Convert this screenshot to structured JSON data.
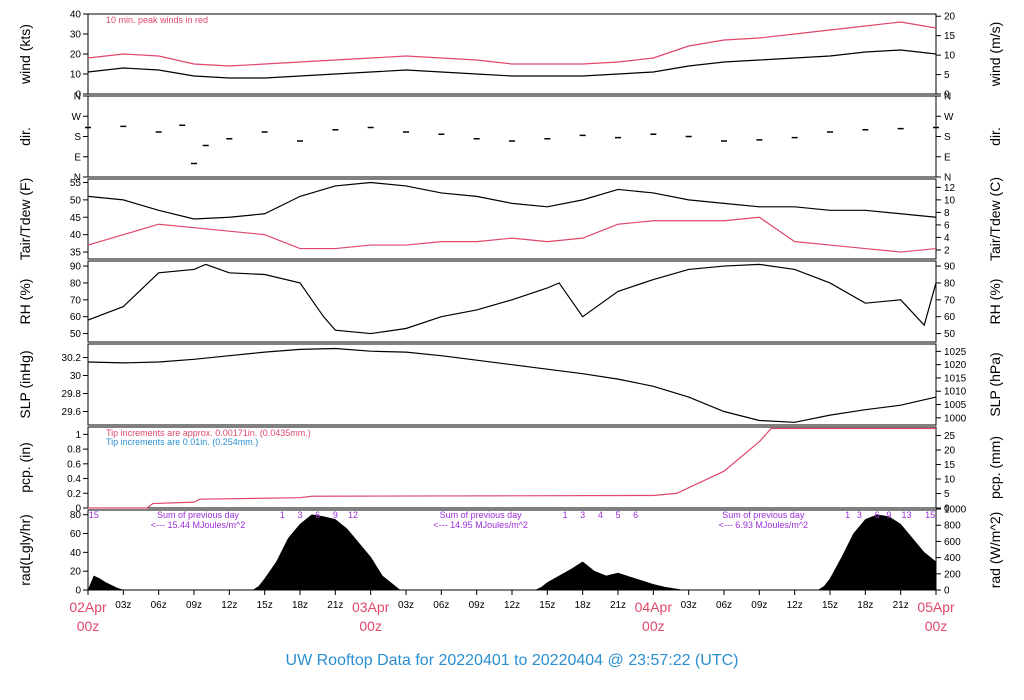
{
  "title": "UW Rooftop Data for 20220401  to  20220404 @ 23:57:22  (UTC)",
  "colors": {
    "black": "#000000",
    "red": "#e0476b",
    "blue": "#2a8fd1",
    "purple": "#9b30d9"
  },
  "x_axis": {
    "hour_labels": [
      "03z",
      "06z",
      "09z",
      "12z",
      "15z",
      "18z",
      "21z",
      "03z",
      "06z",
      "09z",
      "12z",
      "15z",
      "18z",
      "21z",
      "03z",
      "06z",
      "09z",
      "12z",
      "15z",
      "18z",
      "21z"
    ],
    "hour_positions": [
      3,
      6,
      9,
      12,
      15,
      18,
      21,
      27,
      30,
      33,
      36,
      39,
      42,
      45,
      51,
      54,
      57,
      60,
      63,
      66,
      69
    ],
    "dates": [
      {
        "label": "02Apr",
        "sub": "00z",
        "hour": 0
      },
      {
        "label": "03Apr",
        "sub": "00z",
        "hour": 24
      },
      {
        "label": "04Apr",
        "sub": "00z",
        "hour": 48
      },
      {
        "label": "05Apr",
        "sub": "00z",
        "hour": 72
      }
    ]
  },
  "chart_data": [
    {
      "type": "line",
      "panel": "wind",
      "ylabel_left": "wind (kts)",
      "ylabel_right": "wind (m/s)",
      "ylim": [
        0,
        40
      ],
      "yticks_left": [
        0,
        10,
        20,
        30,
        40
      ],
      "yticks_right": [
        0,
        5,
        10,
        15,
        20
      ],
      "right_scale": 0.5144,
      "annotation": "10 min. peak winds in red",
      "series": [
        {
          "color": "black",
          "x": [
            0,
            3,
            6,
            9,
            12,
            15,
            18,
            21,
            24,
            27,
            30,
            33,
            36,
            39,
            42,
            45,
            48,
            51,
            54,
            57,
            60,
            63,
            66,
            69,
            72
          ],
          "y": [
            11,
            13,
            12,
            9,
            8,
            8,
            9,
            10,
            11,
            12,
            11,
            10,
            9,
            9,
            9,
            10,
            11,
            14,
            16,
            17,
            18,
            19,
            21,
            22,
            20
          ]
        },
        {
          "color": "red",
          "x": [
            0,
            3,
            6,
            9,
            12,
            15,
            18,
            21,
            24,
            27,
            30,
            33,
            36,
            39,
            42,
            45,
            48,
            51,
            54,
            57,
            60,
            63,
            66,
            69,
            72
          ],
          "y": [
            18,
            20,
            19,
            15,
            14,
            15,
            16,
            17,
            18,
            19,
            18,
            17,
            15,
            15,
            15,
            16,
            18,
            24,
            27,
            28,
            30,
            32,
            34,
            36,
            33
          ]
        }
      ]
    },
    {
      "type": "scatter",
      "panel": "dir",
      "ylabel_left": "dir.",
      "ylabel_right": "dir.",
      "ylim": [
        0,
        360
      ],
      "yticks": [
        0,
        90,
        180,
        270,
        360
      ],
      "yticklabels": [
        "N",
        "E",
        "S",
        "W",
        "N"
      ],
      "series": [
        {
          "color": "black",
          "x": [
            0,
            3,
            6,
            8,
            9,
            10,
            12,
            15,
            18,
            21,
            24,
            27,
            30,
            33,
            36,
            39,
            42,
            45,
            48,
            51,
            54,
            57,
            60,
            63,
            66,
            69,
            72
          ],
          "y": [
            220,
            225,
            200,
            230,
            60,
            140,
            170,
            200,
            160,
            210,
            220,
            200,
            190,
            170,
            160,
            170,
            185,
            175,
            190,
            180,
            160,
            165,
            175,
            200,
            210,
            215,
            220
          ]
        }
      ]
    },
    {
      "type": "line",
      "panel": "temp",
      "ylabel_left": "Tair/Tdew (F)",
      "ylabel_right": "Tair/Tdew (C)",
      "ylim": [
        33,
        56
      ],
      "yticks_left": [
        35,
        40,
        45,
        50,
        55
      ],
      "yticks_right": [
        2,
        4,
        6,
        8,
        10,
        12
      ],
      "series": [
        {
          "color": "black",
          "x": [
            0,
            3,
            6,
            9,
            12,
            15,
            18,
            21,
            24,
            27,
            30,
            33,
            36,
            39,
            42,
            45,
            48,
            51,
            54,
            57,
            60,
            63,
            66,
            69,
            72
          ],
          "y": [
            51,
            50,
            47,
            44.5,
            45,
            46,
            51,
            54,
            55,
            54,
            52,
            51,
            49,
            48,
            50,
            53,
            52,
            50,
            49,
            48,
            48,
            47,
            47,
            46,
            45
          ]
        },
        {
          "color": "red",
          "x": [
            0,
            3,
            6,
            9,
            12,
            15,
            18,
            21,
            24,
            27,
            30,
            33,
            36,
            39,
            42,
            45,
            48,
            51,
            54,
            57,
            60,
            63,
            66,
            69,
            72
          ],
          "y": [
            37,
            40,
            43,
            42,
            41,
            40,
            36,
            36,
            37,
            37,
            38,
            38,
            39,
            38,
            39,
            43,
            44,
            44,
            44,
            45,
            38,
            37,
            36,
            35,
            36
          ]
        }
      ]
    },
    {
      "type": "line",
      "panel": "rh",
      "ylabel_left": "RH (%)",
      "ylabel_right": "RH (%)",
      "ylim": [
        45,
        93
      ],
      "yticks": [
        50,
        60,
        70,
        80,
        90
      ],
      "series": [
        {
          "color": "black",
          "x": [
            0,
            3,
            6,
            9,
            10,
            12,
            15,
            18,
            20,
            21,
            24,
            27,
            30,
            33,
            36,
            39,
            40,
            42,
            45,
            48,
            51,
            54,
            57,
            60,
            63,
            66,
            69,
            71,
            72
          ],
          "y": [
            58,
            66,
            86,
            88,
            91,
            86,
            85,
            80,
            60,
            52,
            50,
            53,
            60,
            64,
            70,
            77,
            80,
            60,
            75,
            82,
            88,
            90,
            91,
            88,
            80,
            68,
            70,
            55,
            80
          ]
        }
      ]
    },
    {
      "type": "line",
      "panel": "slp",
      "ylabel_left": "SLP (inHg)",
      "ylabel_right": "SLP (hPa)",
      "ylim": [
        29.45,
        30.35
      ],
      "yticks_left": [
        29.6,
        29.8,
        30.0,
        30.2
      ],
      "yticks_right": [
        1000,
        1005,
        1010,
        1015,
        1020,
        1025
      ],
      "series": [
        {
          "color": "black",
          "x": [
            0,
            3,
            6,
            9,
            12,
            15,
            18,
            21,
            24,
            27,
            30,
            33,
            36,
            39,
            42,
            45,
            48,
            51,
            54,
            57,
            60,
            63,
            66,
            69,
            72
          ],
          "y": [
            30.15,
            30.14,
            30.15,
            30.18,
            30.22,
            30.26,
            30.29,
            30.3,
            30.27,
            30.26,
            30.22,
            30.17,
            30.12,
            30.07,
            30.02,
            29.96,
            29.88,
            29.76,
            29.6,
            29.5,
            29.48,
            29.56,
            29.62,
            29.67,
            29.76
          ]
        }
      ]
    },
    {
      "type": "line",
      "panel": "pcp",
      "ylabel_left": "pcp. (in)",
      "ylabel_right": "pcp. (mm)",
      "ylim": [
        0,
        1.1
      ],
      "yticks_left": [
        0.0,
        0.2,
        0.4,
        0.6,
        0.8,
        1.0
      ],
      "yticks_right": [
        0,
        5,
        10,
        15,
        20,
        25
      ],
      "note_red": "Tip increments are approx. 0.00171in. (0.0435mm.)",
      "note_blue": "Tip increments are 0.01in. (0.254mm.)",
      "series": [
        {
          "color": "red",
          "x": [
            0,
            5,
            5.5,
            9,
            9.5,
            18,
            19,
            48,
            50,
            54,
            57,
            58,
            72
          ],
          "y": [
            0,
            0,
            0.06,
            0.08,
            0.12,
            0.14,
            0.16,
            0.17,
            0.2,
            0.5,
            0.9,
            1.08,
            1.08
          ]
        }
      ]
    },
    {
      "type": "area",
      "panel": "rad",
      "ylabel_left": "rad(Lgly/hr)",
      "ylabel_right": "rad (W/m^2)",
      "ylim": [
        0,
        85
      ],
      "yticks_left": [
        0,
        20,
        40,
        60,
        80
      ],
      "yticks_right": [
        0,
        200,
        400,
        600,
        800,
        1000
      ],
      "summaries": [
        {
          "line1": "Sum of previous day",
          "line2": "<--- 15.44 MJoules/m^2",
          "hour": 9
        },
        {
          "line1": "Sum of previous day",
          "line2": "<--- 14.95 MJoules/m^2",
          "hour": 33
        },
        {
          "line1": "Sum of previous day",
          "line2": "<--- 6.93 MJoules/m^2",
          "hour": 57
        }
      ],
      "hour_marks": [
        {
          "label": "15",
          "hour": 0.5
        },
        {
          "label": "1",
          "hour": 16.5
        },
        {
          "label": "3",
          "hour": 18
        },
        {
          "label": "6",
          "hour": 19.5
        },
        {
          "label": "9",
          "hour": 21
        },
        {
          "label": "12",
          "hour": 22.5
        },
        {
          "label": "1",
          "hour": 40.5
        },
        {
          "label": "3",
          "hour": 42
        },
        {
          "label": "4",
          "hour": 43.5
        },
        {
          "label": "5",
          "hour": 45
        },
        {
          "label": "6",
          "hour": 46.5
        },
        {
          "label": "1",
          "hour": 64.5
        },
        {
          "label": "3",
          "hour": 65.5
        },
        {
          "label": "6",
          "hour": 67
        },
        {
          "label": "9",
          "hour": 68
        },
        {
          "label": "13",
          "hour": 69.5
        },
        {
          "label": "15",
          "hour": 71.5
        }
      ],
      "series": [
        {
          "color": "black",
          "x": [
            0,
            0.5,
            1,
            1.5,
            2,
            2.5,
            3,
            14,
            14.5,
            15,
            16,
            17,
            18,
            19,
            20,
            21,
            22,
            23,
            24,
            25,
            26,
            26.5,
            38,
            38.5,
            39,
            40,
            41,
            42,
            43,
            44,
            45,
            46,
            47,
            48,
            49,
            50,
            50.5,
            62,
            62.5,
            63,
            64,
            65,
            66,
            67,
            68,
            69,
            70,
            71,
            72
          ],
          "y": [
            0,
            15,
            12,
            8,
            5,
            2,
            0,
            0,
            4,
            12,
            30,
            55,
            70,
            80,
            78,
            75,
            65,
            50,
            35,
            15,
            5,
            0,
            0,
            3,
            8,
            15,
            22,
            30,
            20,
            15,
            18,
            14,
            10,
            6,
            3,
            1,
            0,
            0,
            4,
            12,
            35,
            60,
            75,
            80,
            78,
            70,
            55,
            40,
            30
          ]
        }
      ]
    }
  ]
}
